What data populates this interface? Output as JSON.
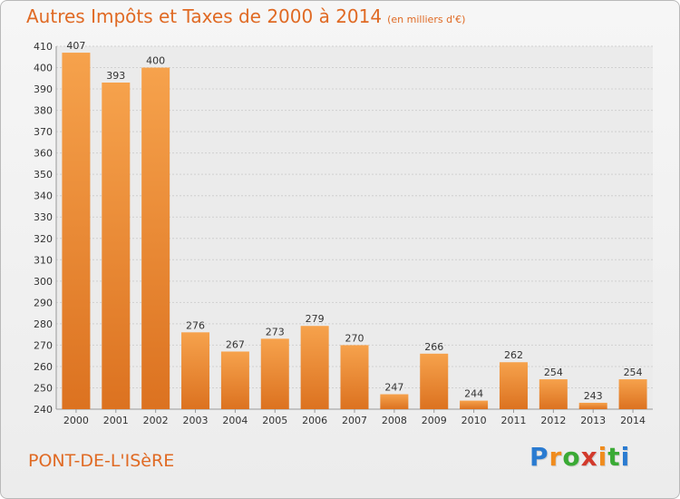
{
  "chart_data": {
    "type": "bar",
    "title": "Autres Impôts et Taxes de 2000 à 2014",
    "subtitle": "(en milliers d'€)",
    "categories": [
      "2000",
      "2001",
      "2002",
      "2003",
      "2004",
      "2005",
      "2006",
      "2007",
      "2008",
      "2009",
      "2010",
      "2011",
      "2012",
      "2013",
      "2014"
    ],
    "values": [
      407,
      393,
      400,
      276,
      267,
      273,
      279,
      270,
      247,
      266,
      244,
      262,
      254,
      243,
      254
    ],
    "ylim": [
      240,
      410
    ],
    "yticks": [
      240,
      250,
      260,
      270,
      280,
      290,
      300,
      310,
      320,
      330,
      340,
      350,
      360,
      370,
      380,
      390,
      400,
      410
    ],
    "grid": true,
    "bar_color": "#f19a3e"
  },
  "commune": "PONT-DE-L'ISèRE",
  "logo": {
    "letters": [
      "P",
      "r",
      "o",
      "x",
      "i",
      "t",
      "i"
    ],
    "colors": [
      "#2a7bd1",
      "#f08c1e",
      "#3aaa35",
      "#d23a2c",
      "#f08c1e",
      "#3aaa35",
      "#2a7bd1"
    ]
  }
}
